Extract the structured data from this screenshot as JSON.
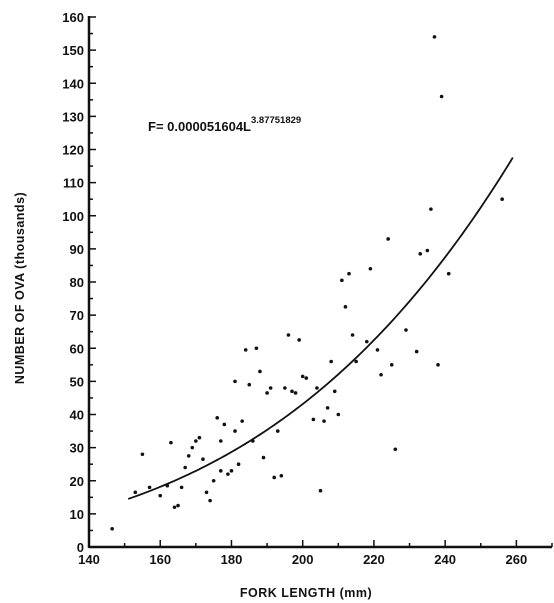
{
  "chart_data": {
    "type": "scatter",
    "xlabel": "FORK LENGTH (mm)",
    "ylabel": "NUMBER OF OVA (thousands)",
    "xlim": [
      140,
      270
    ],
    "ylim": [
      0,
      160
    ],
    "xticks": [
      140,
      160,
      180,
      200,
      220,
      240,
      260
    ],
    "yticks": [
      0,
      10,
      20,
      30,
      40,
      50,
      60,
      70,
      80,
      90,
      100,
      110,
      120,
      130,
      140,
      150,
      160
    ],
    "equation": {
      "prefix": "F= 0.000051604L",
      "exponent": "3.87751829",
      "coefficient": 5.1604e-05,
      "power": 3.87751829
    },
    "fit_line": {
      "x_start": 151,
      "x_end": 259
    },
    "points": [
      [
        146.5,
        5.5
      ],
      [
        153,
        16.5
      ],
      [
        155,
        28
      ],
      [
        157,
        18
      ],
      [
        160,
        15.5
      ],
      [
        162,
        18.5
      ],
      [
        163,
        31.5
      ],
      [
        164,
        12
      ],
      [
        165,
        12.5
      ],
      [
        166,
        18
      ],
      [
        167,
        24
      ],
      [
        168,
        27.5
      ],
      [
        169,
        30
      ],
      [
        170,
        32
      ],
      [
        171,
        33
      ],
      [
        172,
        26.5
      ],
      [
        173,
        16.5
      ],
      [
        174,
        14
      ],
      [
        175,
        20
      ],
      [
        176,
        39
      ],
      [
        177,
        32
      ],
      [
        177,
        23
      ],
      [
        178,
        37
      ],
      [
        179,
        22
      ],
      [
        180,
        23
      ],
      [
        181,
        35
      ],
      [
        181,
        50
      ],
      [
        182,
        25
      ],
      [
        183,
        38
      ],
      [
        184,
        59.5
      ],
      [
        185,
        49
      ],
      [
        186,
        32
      ],
      [
        187,
        60
      ],
      [
        188,
        53
      ],
      [
        189,
        27
      ],
      [
        190,
        46.5
      ],
      [
        191,
        48
      ],
      [
        192,
        21
      ],
      [
        193,
        35
      ],
      [
        194,
        21.5
      ],
      [
        195,
        48
      ],
      [
        196,
        64
      ],
      [
        197,
        47
      ],
      [
        198,
        46.5
      ],
      [
        199,
        62.5
      ],
      [
        200,
        51.5
      ],
      [
        201,
        51
      ],
      [
        203,
        38.5
      ],
      [
        204,
        48
      ],
      [
        205,
        17
      ],
      [
        206,
        38
      ],
      [
        207,
        42
      ],
      [
        208,
        56
      ],
      [
        209,
        47
      ],
      [
        210,
        40
      ],
      [
        211,
        80.5
      ],
      [
        212,
        72.5
      ],
      [
        213,
        82.5
      ],
      [
        214,
        64
      ],
      [
        215,
        56
      ],
      [
        218,
        62
      ],
      [
        219,
        84
      ],
      [
        221,
        59.5
      ],
      [
        222,
        52
      ],
      [
        224,
        93
      ],
      [
        225,
        55
      ],
      [
        226,
        29.5
      ],
      [
        229,
        65.5
      ],
      [
        232,
        59
      ],
      [
        233,
        88.5
      ],
      [
        235,
        89.5
      ],
      [
        236,
        102
      ],
      [
        237,
        154
      ],
      [
        238,
        55
      ],
      [
        239,
        136
      ],
      [
        241,
        82.5
      ],
      [
        256,
        105
      ]
    ]
  }
}
